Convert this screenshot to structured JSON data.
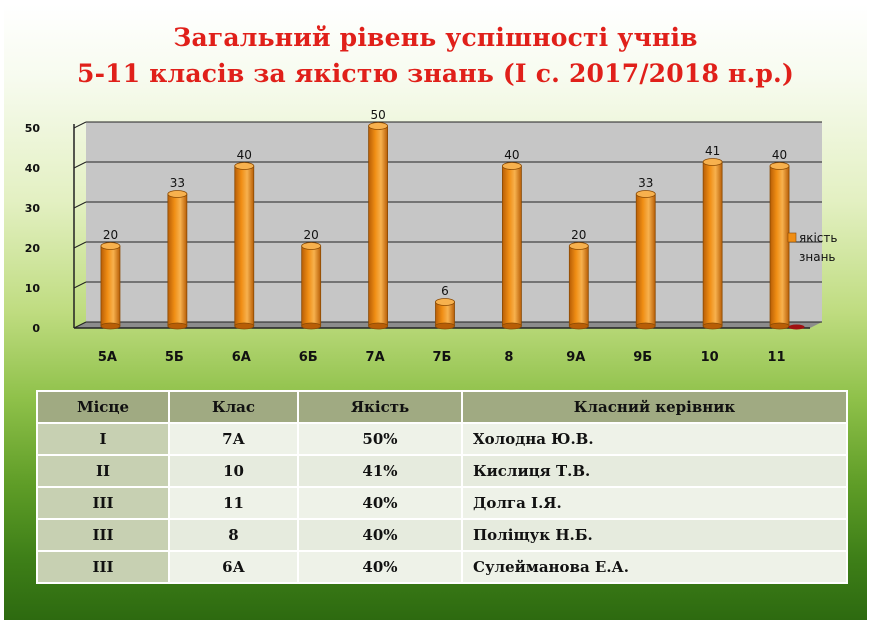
{
  "title_line1": "Загальний рівень успішності учнів",
  "title_line2": "5-11 класів за якістю знань (І с. 2017/2018 н.р.)",
  "colors": {
    "bar_front": "#f08e14",
    "bar_side": "#b85e06",
    "bar_top": "#f7b14e",
    "title": "#e0201a",
    "plot_back": "#c6c6c6",
    "plot_floor": "#8c8c8c"
  },
  "chart_data": {
    "type": "bar",
    "categories": [
      "5А",
      "5Б",
      "6А",
      "6Б",
      "7А",
      "7Б",
      "8",
      "9А",
      "9Б",
      "10",
      "11"
    ],
    "series": [
      {
        "name": "якість знань",
        "values": [
          20,
          33,
          40,
          20,
          50,
          6,
          40,
          20,
          33,
          41,
          40
        ]
      }
    ],
    "data_labels": [
      "20",
      "33",
      "40",
      "20",
      "50",
      "6",
      "40",
      "20",
      "33",
      "41",
      "40"
    ],
    "yticks": [
      "0",
      "10",
      "20",
      "30",
      "40",
      "50"
    ],
    "ylim": [
      0,
      50
    ],
    "legend_lines": [
      "якість",
      "знань"
    ],
    "legend_position": "right",
    "grid": true
  },
  "table": {
    "headers": [
      "Місце",
      "Клас",
      "Якість",
      "Класний керівник"
    ],
    "rows": [
      [
        "І",
        "7А",
        "50%",
        "Холодна Ю.В."
      ],
      [
        "ІІ",
        "10",
        "41%",
        "Кислиця Т.В."
      ],
      [
        "ІІІ",
        "11",
        "40%",
        "Долга І.Я."
      ],
      [
        "ІІІ",
        "8",
        "40%",
        "Поліщук Н.Б."
      ],
      [
        "ІІІ",
        "6А",
        "40%",
        "Сулейманова Е.А."
      ]
    ]
  }
}
